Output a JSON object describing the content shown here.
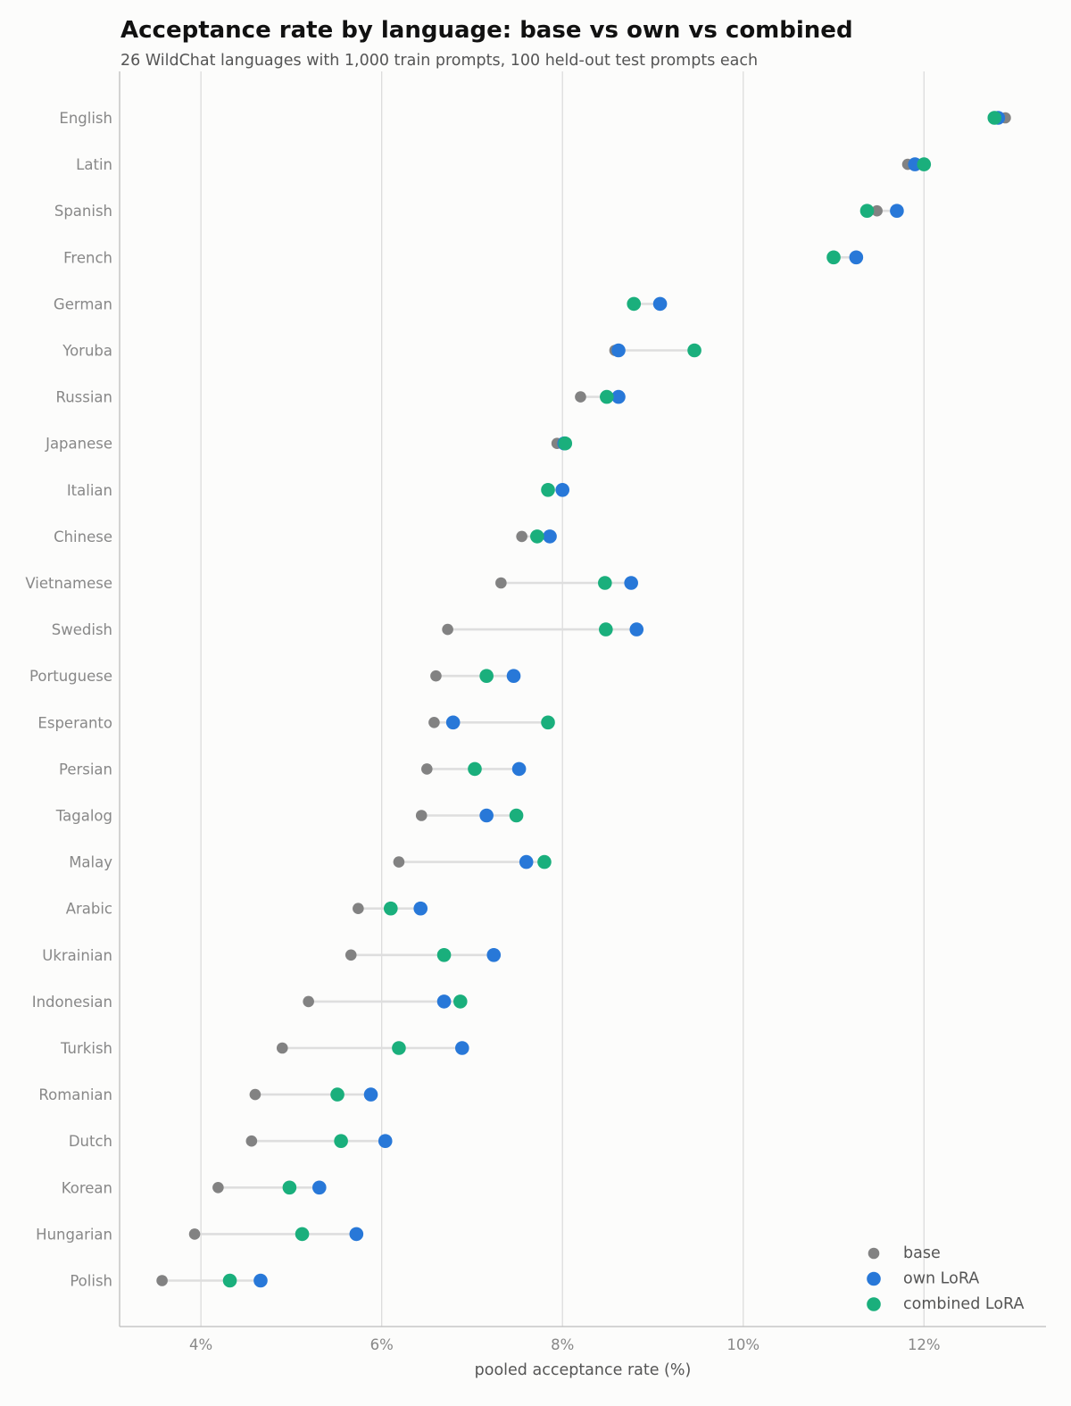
{
  "chart_data": {
    "type": "scatter",
    "title": "Acceptance rate by language: base vs own vs combined",
    "subtitle": "26 WildChat languages with 1,000 train prompts, 100 held-out test prompts each",
    "xlabel": "pooled acceptance rate (%)",
    "ylabel": "",
    "xlim": [
      3.1,
      13.35
    ],
    "xticks": [
      4,
      6,
      8,
      10,
      12
    ],
    "xtick_labels": [
      "4%",
      "6%",
      "8%",
      "10%",
      "12%"
    ],
    "grid": "vertical",
    "legend_position": "bottom-right",
    "categories": [
      "English",
      "Latin",
      "Spanish",
      "French",
      "German",
      "Yoruba",
      "Russian",
      "Japanese",
      "Italian",
      "Chinese",
      "Vietnamese",
      "Swedish",
      "Portuguese",
      "Esperanto",
      "Persian",
      "Tagalog",
      "Malay",
      "Arabic",
      "Ukrainian",
      "Indonesian",
      "Turkish",
      "Romanian",
      "Dutch",
      "Korean",
      "Hungarian",
      "Polish"
    ],
    "series": [
      {
        "name": "base",
        "color": "#828282",
        "values": [
          12.9,
          11.82,
          11.48,
          11.0,
          8.78,
          8.58,
          8.2,
          7.94,
          7.84,
          7.55,
          7.32,
          6.73,
          6.6,
          6.58,
          6.5,
          6.44,
          6.19,
          5.74,
          5.66,
          5.19,
          4.9,
          4.6,
          4.56,
          4.19,
          3.93,
          3.57
        ]
      },
      {
        "name": "own LoRA",
        "color": "#2878d8",
        "values": [
          12.82,
          11.9,
          11.7,
          11.25,
          9.08,
          8.62,
          8.62,
          8.02,
          8.0,
          7.86,
          8.76,
          8.82,
          7.46,
          6.79,
          7.52,
          7.16,
          7.6,
          6.43,
          7.24,
          6.69,
          6.89,
          5.88,
          6.04,
          5.31,
          5.72,
          4.66
        ]
      },
      {
        "name": "combined LoRA",
        "color": "#1aaf7c",
        "values": [
          12.78,
          12.0,
          11.37,
          11.0,
          8.79,
          9.46,
          8.49,
          8.03,
          7.84,
          7.72,
          8.47,
          8.48,
          7.16,
          7.84,
          7.03,
          7.49,
          7.8,
          6.1,
          6.69,
          6.87,
          6.19,
          5.51,
          5.55,
          4.98,
          5.12,
          4.32
        ]
      }
    ]
  }
}
